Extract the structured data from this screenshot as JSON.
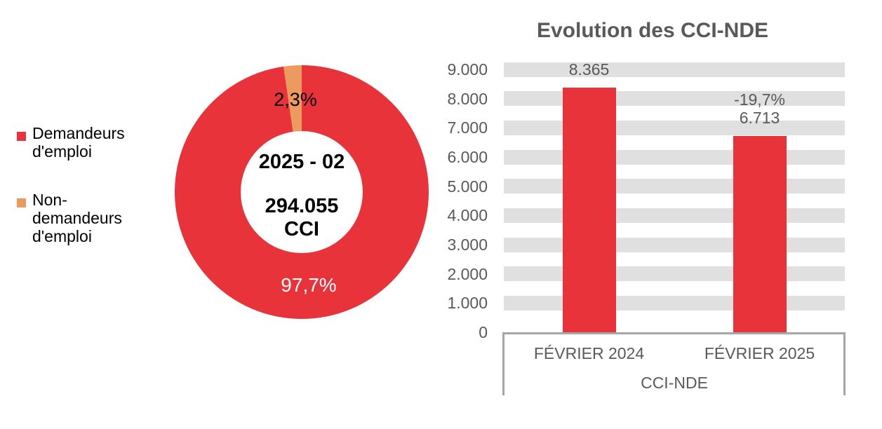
{
  "chart_data": [
    {
      "type": "pie",
      "subtype": "donut",
      "slices": [
        {
          "label": "Demandeurs d'emploi",
          "value": 97.7,
          "display_value": "97,7%",
          "color": "#E8333A",
          "label_color": "#FFFFFF"
        },
        {
          "label": "Non-demandeurs d'emploi",
          "value": 2.3,
          "display_value": "2,3%",
          "color": "#EC9B5F",
          "label_color": "#000000"
        }
      ],
      "center_lines": [
        "2025 - 02",
        "294.055",
        "CCI"
      ],
      "legend_position": "left",
      "legend_items": [
        {
          "lines": [
            "Demandeurs",
            "d'emploi"
          ],
          "color": "#E8333A"
        },
        {
          "lines": [
            "Non-",
            "demandeurs",
            "d'emploi"
          ],
          "color": "#EC9B5F"
        }
      ],
      "start_angle_deg": 0,
      "direction": "clockwise"
    },
    {
      "type": "bar",
      "title": "Evolution des CCI-NDE",
      "categories": [
        "FÉVRIER 2024",
        "FÉVRIER 2025"
      ],
      "values": [
        8365,
        6713
      ],
      "bar_labels": [
        [
          "8.365"
        ],
        [
          "-19,7%",
          "6.713"
        ]
      ],
      "group_label": "CCI-NDE",
      "xlabel": "",
      "ylabel": "",
      "ylim": [
        0,
        9000
      ],
      "ytick_interval": 1000,
      "ytick_labels": [
        "0",
        "1.000",
        "2.000",
        "3.000",
        "4.000",
        "5.000",
        "6.000",
        "7.000",
        "8.000",
        "9.000"
      ],
      "grid": "horizontal-bands",
      "legend": "none",
      "bar_color": "#E8333A",
      "band_color": "#E0E0E0",
      "axis_box_color": "#A6A6A6",
      "text_color": "#595959"
    }
  ]
}
